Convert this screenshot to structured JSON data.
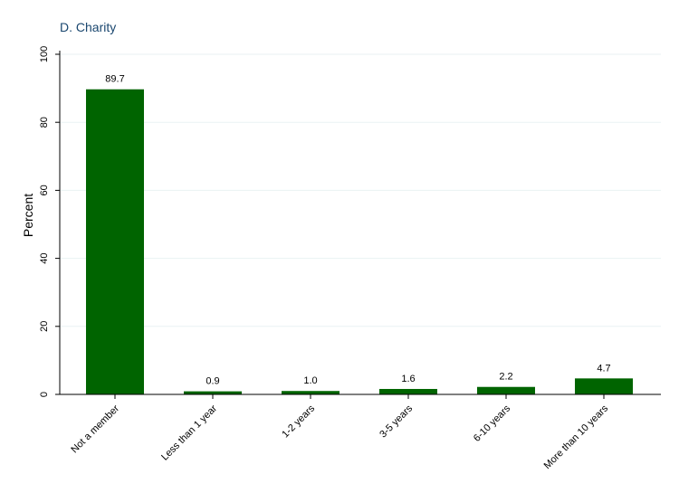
{
  "chart_data": {
    "type": "bar",
    "title": "D. Charity",
    "xlabel": "",
    "ylabel": "Percent",
    "categories": [
      "Not a member",
      "Less than 1 year",
      "1-2 years",
      "3-5 years",
      "6-10 years",
      "More than 10 years"
    ],
    "values": [
      89.7,
      0.9,
      1.0,
      1.6,
      2.2,
      4.7
    ],
    "data_labels": [
      "89.7",
      "0.9",
      "1.0",
      "1.6",
      "2.2",
      "4.7"
    ],
    "ylim": [
      0,
      100
    ],
    "yticks": [
      0,
      20,
      40,
      60,
      80,
      100
    ],
    "ytick_labels": [
      "0",
      "20",
      "40",
      "60",
      "80",
      "100"
    ],
    "grid": true,
    "colors": {
      "bar": "#006400",
      "title": "#1a476f",
      "grid": "#eaf2f3"
    }
  }
}
